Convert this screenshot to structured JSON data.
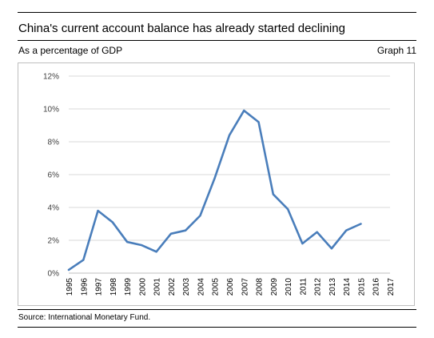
{
  "header": {
    "title": "China's current account balance has already started declining",
    "subtitle": "As a percentage of GDP",
    "graph_label": "Graph 11"
  },
  "footer": {
    "source": "Source: International Monetary Fund."
  },
  "chart_data": {
    "type": "line",
    "title": "China's current account balance has already started declining",
    "subtitle": "As a percentage of GDP",
    "xlabel": "",
    "ylabel": "",
    "x": [
      "1995",
      "1996",
      "1997",
      "1998",
      "1999",
      "2000",
      "2001",
      "2002",
      "2003",
      "2004",
      "2005",
      "2006",
      "2007",
      "2008",
      "2009",
      "2010",
      "2011",
      "2012",
      "2013",
      "2014",
      "2015",
      "2016",
      "2017"
    ],
    "series": [
      {
        "values": [
          0.2,
          0.8,
          3.8,
          3.1,
          1.9,
          1.7,
          1.3,
          2.4,
          2.6,
          3.5,
          5.8,
          8.4,
          9.9,
          9.2,
          4.8,
          3.9,
          1.8,
          2.5,
          1.5,
          2.6,
          3.0,
          null,
          null
        ]
      }
    ],
    "y_ticks": [
      "0%",
      "2%",
      "4%",
      "6%",
      "8%",
      "10%",
      "12%"
    ],
    "ylim": [
      0,
      12
    ],
    "grid": true,
    "line_color": "#4a7ebb",
    "grid_color": "#d9d9d9"
  }
}
